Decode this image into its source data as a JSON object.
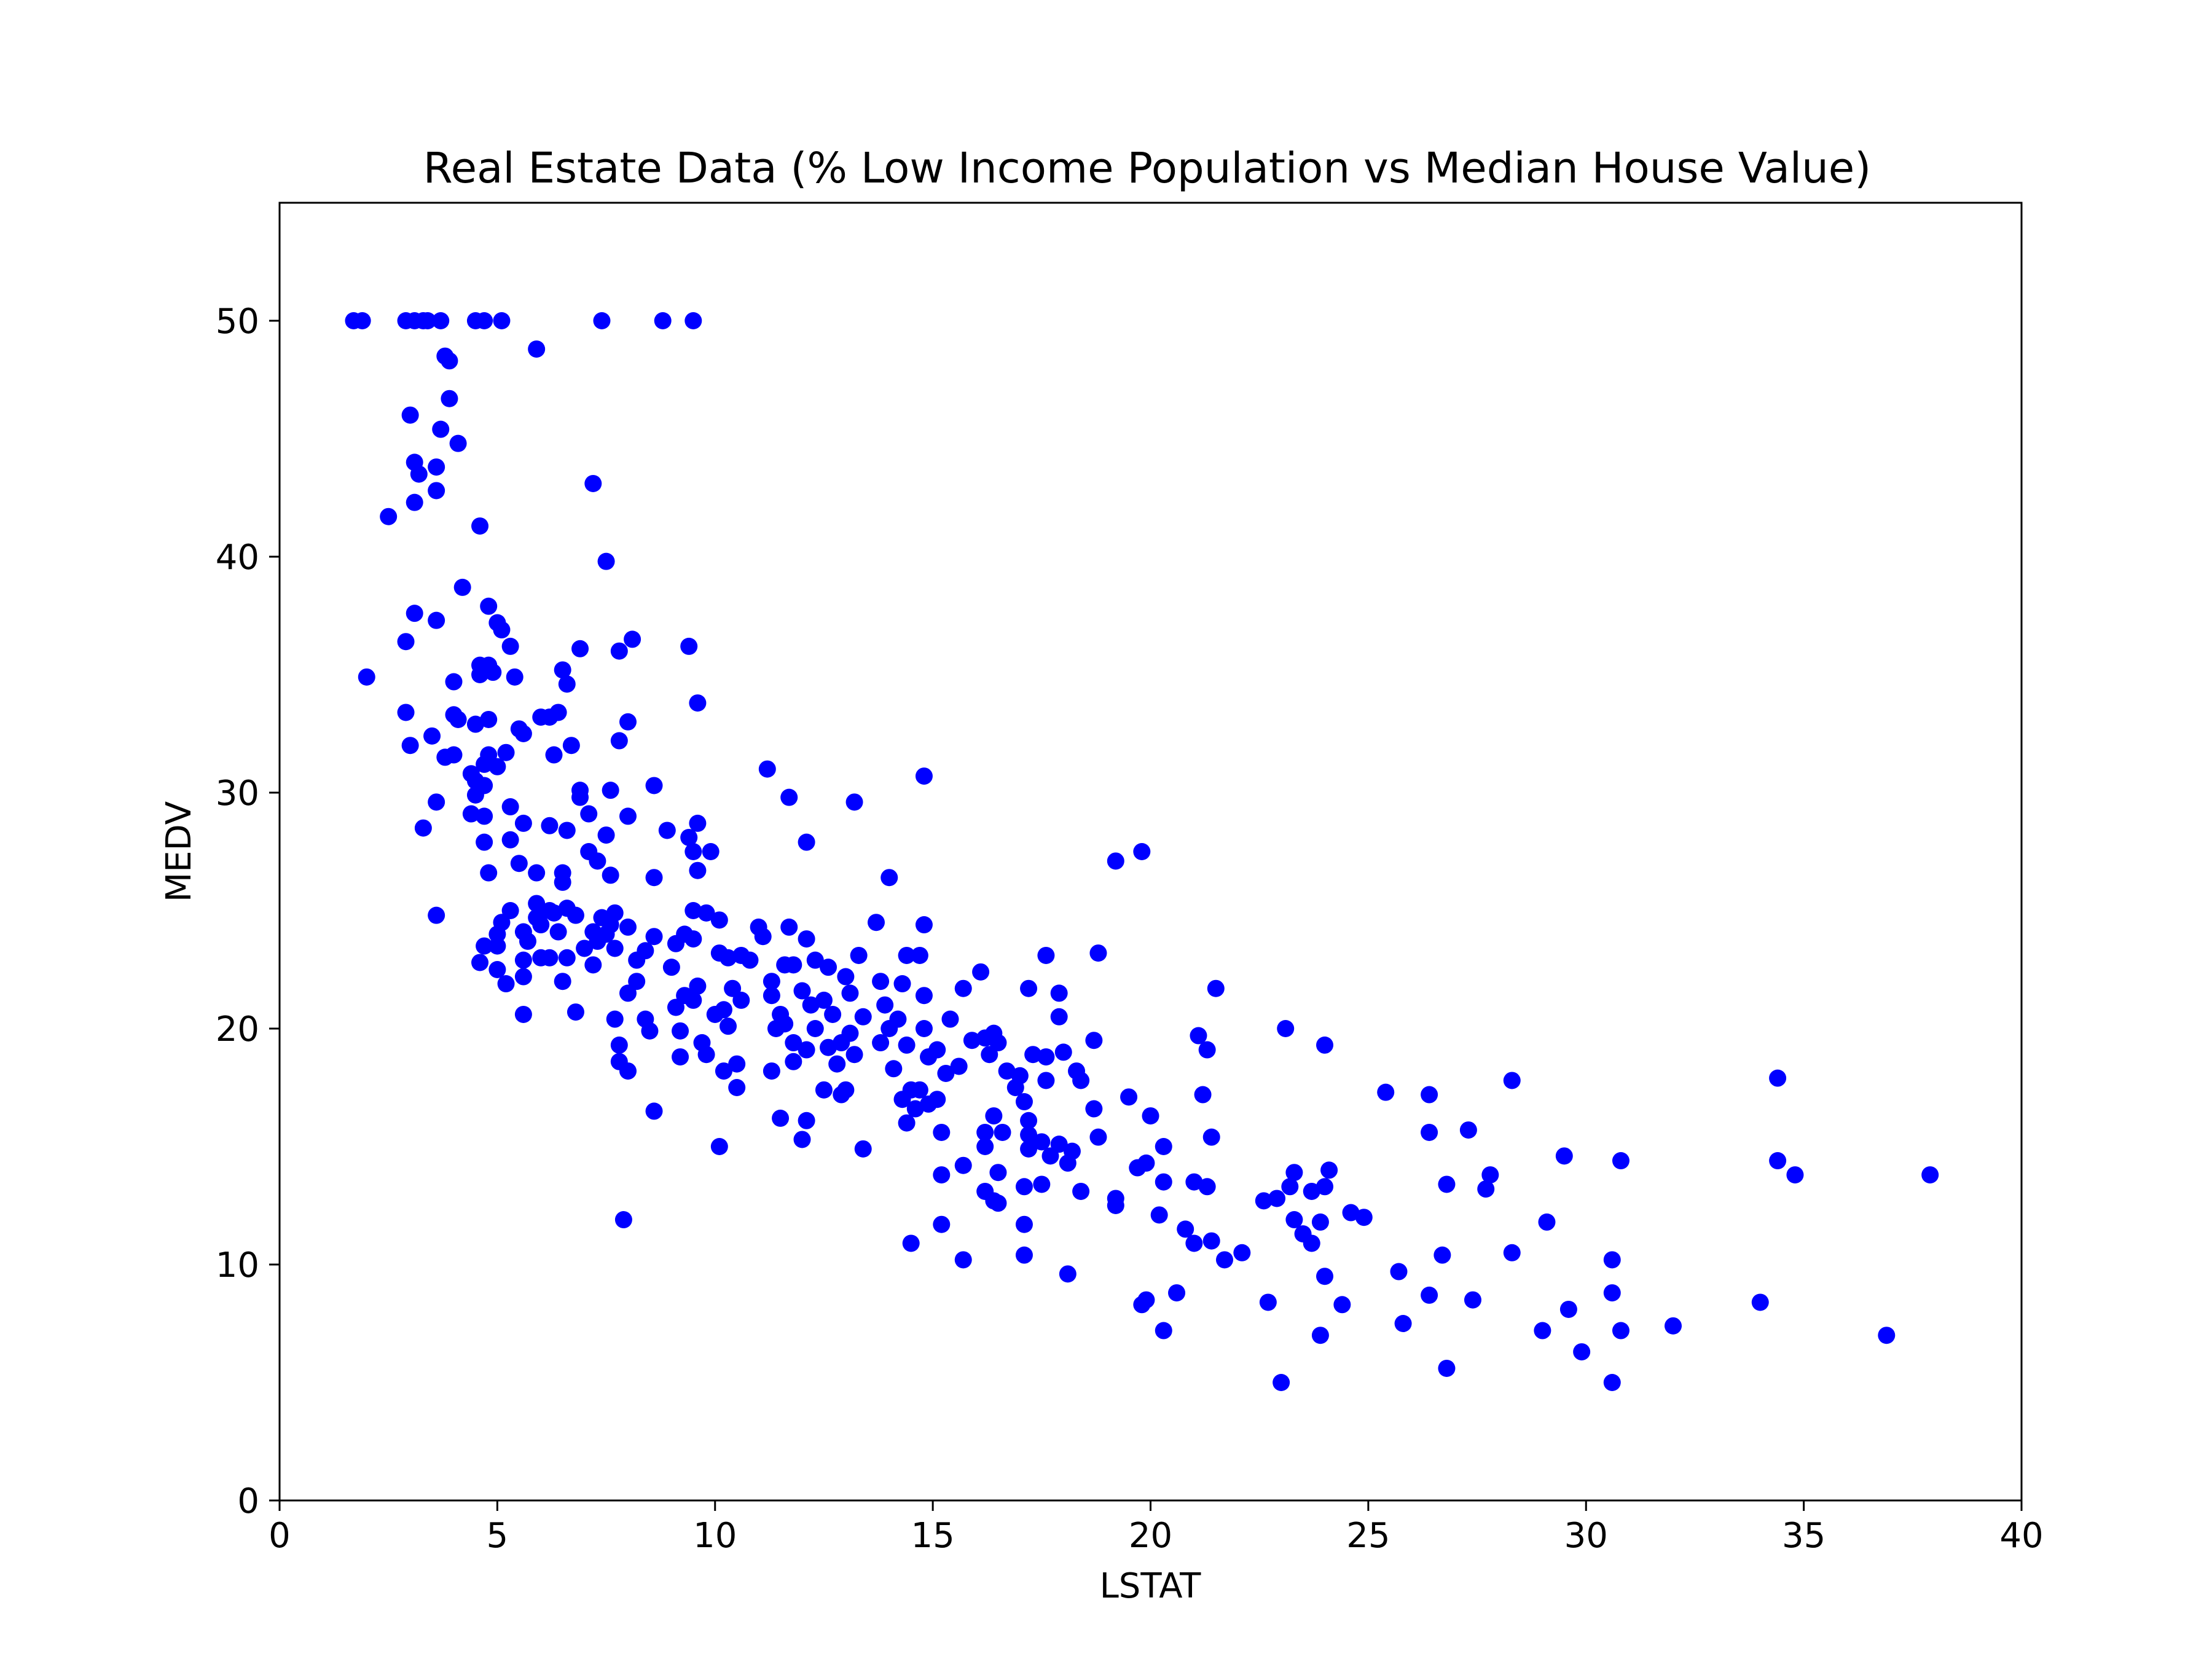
{
  "chart_data": {
    "type": "scatter",
    "title": "Real Estate Data (% Low Income Population vs Median House Value)",
    "xlabel": "LSTAT",
    "ylabel": "MEDV",
    "xlim": [
      0,
      40
    ],
    "ylim": [
      0,
      55
    ],
    "xticks": [
      0,
      5,
      10,
      15,
      20,
      25,
      30,
      35,
      40
    ],
    "yticks": [
      0,
      10,
      20,
      30,
      40,
      50
    ],
    "grid": false,
    "legend": false,
    "color": "#0000ff",
    "points": [
      [
        1.7,
        50.0
      ],
      [
        1.9,
        50.0
      ],
      [
        2.9,
        50.0
      ],
      [
        3.1,
        50.0
      ],
      [
        3.3,
        50.0
      ],
      [
        3.4,
        50.0
      ],
      [
        3.7,
        50.0
      ],
      [
        4.5,
        50.0
      ],
      [
        4.7,
        50.0
      ],
      [
        5.1,
        50.0
      ],
      [
        7.4,
        50.0
      ],
      [
        8.8,
        50.0
      ],
      [
        9.5,
        50.0
      ],
      [
        5.9,
        48.8
      ],
      [
        3.8,
        48.5
      ],
      [
        3.9,
        48.3
      ],
      [
        3.9,
        46.7
      ],
      [
        3.0,
        46.0
      ],
      [
        3.7,
        45.4
      ],
      [
        4.1,
        44.8
      ],
      [
        3.1,
        44.0
      ],
      [
        3.2,
        43.5
      ],
      [
        3.6,
        43.8
      ],
      [
        7.2,
        43.1
      ],
      [
        3.6,
        42.8
      ],
      [
        3.1,
        42.3
      ],
      [
        2.5,
        41.7
      ],
      [
        4.6,
        41.3
      ],
      [
        7.5,
        39.8
      ],
      [
        4.2,
        38.7
      ],
      [
        4.8,
        37.9
      ],
      [
        3.1,
        37.6
      ],
      [
        3.6,
        37.3
      ],
      [
        5.0,
        37.2
      ],
      [
        5.1,
        36.9
      ],
      [
        8.1,
        36.5
      ],
      [
        2.9,
        36.4
      ],
      [
        5.3,
        36.2
      ],
      [
        9.4,
        36.2
      ],
      [
        6.9,
        36.1
      ],
      [
        7.8,
        36.0
      ],
      [
        4.8,
        35.4
      ],
      [
        4.6,
        35.4
      ],
      [
        6.5,
        35.2
      ],
      [
        4.9,
        35.1
      ],
      [
        4.6,
        35.0
      ],
      [
        2.0,
        34.9
      ],
      [
        5.4,
        34.9
      ],
      [
        4.0,
        34.7
      ],
      [
        6.6,
        34.6
      ],
      [
        9.6,
        33.8
      ],
      [
        2.9,
        33.4
      ],
      [
        6.4,
        33.4
      ],
      [
        4.0,
        33.3
      ],
      [
        6.0,
        33.2
      ],
      [
        6.2,
        33.2
      ],
      [
        4.1,
        33.1
      ],
      [
        4.8,
        33.1
      ],
      [
        8.0,
        33.0
      ],
      [
        4.5,
        32.9
      ],
      [
        5.5,
        32.7
      ],
      [
        3.5,
        32.4
      ],
      [
        5.6,
        32.5
      ],
      [
        7.8,
        32.2
      ],
      [
        3.0,
        32.0
      ],
      [
        6.7,
        32.0
      ],
      [
        5.2,
        31.7
      ],
      [
        4.8,
        31.6
      ],
      [
        6.3,
        31.6
      ],
      [
        3.8,
        31.5
      ],
      [
        4.0,
        31.6
      ],
      [
        4.7,
        31.2
      ],
      [
        5.0,
        31.1
      ],
      [
        11.2,
        31.0
      ],
      [
        4.4,
        30.8
      ],
      [
        4.5,
        30.5
      ],
      [
        14.8,
        30.7
      ],
      [
        4.7,
        30.3
      ],
      [
        8.6,
        30.3
      ],
      [
        6.9,
        30.1
      ],
      [
        7.6,
        30.1
      ],
      [
        4.5,
        29.9
      ],
      [
        11.7,
        29.8
      ],
      [
        6.9,
        29.8
      ],
      [
        13.2,
        29.6
      ],
      [
        3.6,
        29.6
      ],
      [
        5.3,
        29.4
      ],
      [
        4.4,
        29.1
      ],
      [
        7.1,
        29.1
      ],
      [
        4.7,
        29.0
      ],
      [
        8.0,
        29.0
      ],
      [
        9.6,
        28.7
      ],
      [
        5.6,
        28.7
      ],
      [
        5.9,
        26.6
      ],
      [
        6.2,
        28.6
      ],
      [
        3.3,
        28.5
      ],
      [
        6.6,
        28.4
      ],
      [
        8.9,
        28.4
      ],
      [
        7.5,
        28.2
      ],
      [
        9.4,
        28.1
      ],
      [
        5.3,
        28.0
      ],
      [
        12.1,
        27.9
      ],
      [
        4.7,
        27.9
      ],
      [
        9.5,
        27.5
      ],
      [
        7.1,
        27.5
      ],
      [
        9.9,
        27.5
      ],
      [
        19.8,
        27.5
      ],
      [
        7.3,
        27.1
      ],
      [
        19.2,
        27.1
      ],
      [
        5.5,
        27.0
      ],
      [
        9.6,
        26.7
      ],
      [
        6.5,
        26.6
      ],
      [
        4.8,
        26.6
      ],
      [
        7.6,
        26.5
      ],
      [
        8.6,
        26.4
      ],
      [
        14.0,
        26.4
      ],
      [
        6.5,
        26.2
      ],
      [
        5.9,
        25.3
      ],
      [
        6.2,
        25.0
      ],
      [
        6.6,
        25.1
      ],
      [
        5.3,
        25.0
      ],
      [
        6.3,
        24.9
      ],
      [
        7.7,
        24.9
      ],
      [
        9.5,
        25.0
      ],
      [
        9.8,
        24.9
      ],
      [
        6.8,
        24.8
      ],
      [
        3.6,
        24.8
      ],
      [
        5.9,
        24.7
      ],
      [
        7.4,
        24.7
      ],
      [
        10.1,
        24.6
      ],
      [
        5.1,
        24.5
      ],
      [
        6.0,
        24.4
      ],
      [
        7.6,
        24.4
      ],
      [
        13.7,
        24.5
      ],
      [
        14.8,
        24.4
      ],
      [
        8.0,
        24.3
      ],
      [
        11.0,
        24.3
      ],
      [
        11.7,
        24.3
      ],
      [
        7.2,
        24.1
      ],
      [
        5.6,
        24.1
      ],
      [
        6.4,
        24.1
      ],
      [
        9.3,
        24.0
      ],
      [
        5.0,
        24.0
      ],
      [
        7.5,
        24.0
      ],
      [
        11.1,
        23.9
      ],
      [
        8.6,
        23.9
      ],
      [
        12.1,
        23.8
      ],
      [
        9.5,
        23.8
      ],
      [
        5.7,
        23.7
      ],
      [
        7.3,
        23.7
      ],
      [
        9.1,
        23.6
      ],
      [
        5.0,
        23.5
      ],
      [
        4.7,
        23.5
      ],
      [
        7.0,
        23.4
      ],
      [
        7.7,
        23.4
      ],
      [
        8.4,
        23.3
      ],
      [
        10.6,
        23.1
      ],
      [
        13.3,
        23.1
      ],
      [
        10.1,
        23.2
      ],
      [
        6.0,
        23.0
      ],
      [
        17.6,
        23.1
      ],
      [
        5.6,
        22.9
      ],
      [
        6.6,
        23.0
      ],
      [
        8.2,
        22.9
      ],
      [
        10.3,
        23.0
      ],
      [
        10.8,
        22.9
      ],
      [
        14.4,
        23.1
      ],
      [
        14.7,
        23.1
      ],
      [
        6.2,
        23.0
      ],
      [
        18.8,
        23.2
      ],
      [
        4.6,
        22.8
      ],
      [
        7.2,
        22.7
      ],
      [
        9.0,
        22.6
      ],
      [
        11.6,
        22.7
      ],
      [
        11.8,
        22.7
      ],
      [
        12.3,
        22.9
      ],
      [
        12.6,
        22.6
      ],
      [
        5.0,
        22.5
      ],
      [
        16.1,
        22.4
      ],
      [
        13.0,
        22.2
      ],
      [
        5.6,
        22.2
      ],
      [
        6.5,
        22.0
      ],
      [
        5.2,
        21.9
      ],
      [
        8.2,
        22.0
      ],
      [
        11.3,
        22.0
      ],
      [
        13.8,
        22.0
      ],
      [
        14.3,
        21.9
      ],
      [
        9.6,
        21.8
      ],
      [
        10.4,
        21.7
      ],
      [
        15.7,
        21.7
      ],
      [
        17.2,
        21.7
      ],
      [
        21.5,
        21.7
      ],
      [
        12.0,
        21.6
      ],
      [
        8.0,
        21.5
      ],
      [
        13.1,
        21.5
      ],
      [
        17.9,
        21.5
      ],
      [
        9.3,
        21.4
      ],
      [
        11.3,
        21.4
      ],
      [
        14.8,
        21.4
      ],
      [
        10.6,
        21.2
      ],
      [
        12.5,
        21.2
      ],
      [
        9.5,
        21.2
      ],
      [
        12.2,
        21.0
      ],
      [
        13.9,
        21.0
      ],
      [
        9.1,
        20.9
      ],
      [
        10.2,
        20.8
      ],
      [
        12.7,
        20.6
      ],
      [
        6.8,
        20.7
      ],
      [
        5.6,
        20.6
      ],
      [
        10.0,
        20.6
      ],
      [
        11.5,
        20.6
      ],
      [
        13.4,
        20.5
      ],
      [
        14.2,
        20.4
      ],
      [
        7.7,
        20.4
      ],
      [
        8.4,
        20.4
      ],
      [
        15.4,
        20.4
      ],
      [
        17.9,
        20.5
      ],
      [
        11.6,
        20.2
      ],
      [
        10.3,
        20.1
      ],
      [
        12.3,
        20.0
      ],
      [
        8.5,
        19.9
      ],
      [
        9.2,
        19.9
      ],
      [
        11.4,
        20.0
      ],
      [
        14.0,
        20.0
      ],
      [
        14.8,
        20.0
      ],
      [
        16.4,
        19.8
      ],
      [
        13.1,
        19.8
      ],
      [
        16.2,
        19.6
      ],
      [
        11.8,
        19.4
      ],
      [
        15.9,
        19.5
      ],
      [
        9.7,
        19.4
      ],
      [
        12.9,
        19.4
      ],
      [
        13.8,
        19.4
      ],
      [
        16.5,
        19.4
      ],
      [
        18.7,
        19.5
      ],
      [
        21.1,
        19.7
      ],
      [
        24.0,
        19.3
      ],
      [
        23.1,
        20.0
      ],
      [
        7.8,
        19.3
      ],
      [
        12.6,
        19.2
      ],
      [
        14.4,
        19.3
      ],
      [
        12.1,
        19.1
      ],
      [
        15.1,
        19.1
      ],
      [
        17.6,
        18.8
      ],
      [
        18.0,
        19.0
      ],
      [
        21.3,
        19.1
      ],
      [
        9.8,
        18.9
      ],
      [
        13.2,
        18.9
      ],
      [
        14.9,
        18.8
      ],
      [
        9.2,
        18.8
      ],
      [
        15.6,
        18.4
      ],
      [
        16.3,
        18.9
      ],
      [
        17.3,
        18.9
      ],
      [
        11.8,
        18.6
      ],
      [
        7.8,
        18.6
      ],
      [
        10.5,
        18.5
      ],
      [
        12.8,
        18.5
      ],
      [
        15.3,
        18.1
      ],
      [
        16.7,
        18.2
      ],
      [
        18.3,
        18.2
      ],
      [
        10.2,
        18.2
      ],
      [
        11.3,
        18.2
      ],
      [
        14.1,
        18.3
      ],
      [
        8.0,
        18.2
      ],
      [
        17.0,
        18.0
      ],
      [
        17.6,
        17.8
      ],
      [
        18.4,
        17.8
      ],
      [
        28.3,
        17.8
      ],
      [
        34.4,
        17.9
      ],
      [
        10.5,
        17.5
      ],
      [
        12.5,
        17.4
      ],
      [
        13.0,
        17.4
      ],
      [
        14.5,
        17.4
      ],
      [
        14.7,
        17.4
      ],
      [
        15.1,
        17.0
      ],
      [
        16.9,
        17.5
      ],
      [
        21.2,
        17.2
      ],
      [
        26.4,
        17.2
      ],
      [
        25.4,
        17.3
      ],
      [
        19.5,
        17.1
      ],
      [
        14.3,
        17.0
      ],
      [
        12.9,
        17.2
      ],
      [
        14.9,
        16.8
      ],
      [
        17.1,
        16.9
      ],
      [
        14.6,
        16.6
      ],
      [
        8.6,
        16.5
      ],
      [
        16.4,
        16.3
      ],
      [
        18.7,
        16.6
      ],
      [
        20.0,
        16.3
      ],
      [
        11.5,
        16.2
      ],
      [
        12.1,
        16.1
      ],
      [
        17.2,
        16.1
      ],
      [
        14.4,
        16.0
      ],
      [
        15.2,
        15.6
      ],
      [
        16.6,
        15.6
      ],
      [
        17.2,
        15.5
      ],
      [
        16.2,
        15.6
      ],
      [
        26.4,
        15.6
      ],
      [
        27.3,
        15.7
      ],
      [
        17.5,
        15.2
      ],
      [
        17.9,
        15.1
      ],
      [
        18.8,
        15.4
      ],
      [
        21.4,
        15.4
      ],
      [
        12.0,
        15.3
      ],
      [
        16.2,
        15.0
      ],
      [
        17.2,
        14.9
      ],
      [
        18.2,
        14.8
      ],
      [
        20.3,
        15.0
      ],
      [
        10.1,
        15.0
      ],
      [
        13.4,
        14.9
      ],
      [
        17.7,
        14.6
      ],
      [
        18.1,
        14.3
      ],
      [
        19.9,
        14.3
      ],
      [
        29.5,
        14.6
      ],
      [
        15.7,
        14.2
      ],
      [
        19.7,
        14.1
      ],
      [
        34.4,
        14.4
      ],
      [
        30.8,
        14.4
      ],
      [
        16.5,
        13.9
      ],
      [
        15.2,
        13.8
      ],
      [
        23.3,
        13.9
      ],
      [
        24.1,
        14.0
      ],
      [
        27.8,
        13.8
      ],
      [
        37.9,
        13.8
      ],
      [
        34.8,
        13.8
      ],
      [
        20.3,
        13.5
      ],
      [
        21.0,
        13.5
      ],
      [
        23.2,
        13.3
      ],
      [
        24.0,
        13.3
      ],
      [
        26.8,
        13.4
      ],
      [
        27.7,
        13.2
      ],
      [
        17.1,
        13.3
      ],
      [
        17.5,
        13.4
      ],
      [
        16.2,
        13.1
      ],
      [
        18.4,
        13.1
      ],
      [
        21.3,
        13.3
      ],
      [
        23.7,
        13.1
      ],
      [
        19.2,
        12.8
      ],
      [
        22.6,
        12.7
      ],
      [
        22.9,
        12.8
      ],
      [
        16.4,
        12.7
      ],
      [
        16.5,
        12.6
      ],
      [
        19.2,
        12.5
      ],
      [
        24.6,
        12.2
      ],
      [
        24.9,
        12.0
      ],
      [
        20.2,
        12.1
      ],
      [
        7.9,
        11.9
      ],
      [
        23.3,
        11.9
      ],
      [
        23.9,
        11.8
      ],
      [
        29.1,
        11.8
      ],
      [
        15.2,
        11.7
      ],
      [
        17.1,
        11.7
      ],
      [
        20.8,
        11.5
      ],
      [
        21.4,
        11.0
      ],
      [
        23.5,
        11.3
      ],
      [
        23.7,
        10.9
      ],
      [
        21.0,
        10.9
      ],
      [
        14.5,
        10.9
      ],
      [
        28.3,
        10.5
      ],
      [
        26.7,
        10.4
      ],
      [
        22.1,
        10.5
      ],
      [
        17.1,
        10.4
      ],
      [
        21.7,
        10.2
      ],
      [
        15.7,
        10.2
      ],
      [
        30.6,
        10.2
      ],
      [
        25.7,
        9.7
      ],
      [
        24.0,
        9.5
      ],
      [
        18.1,
        9.6
      ],
      [
        20.6,
        8.8
      ],
      [
        30.6,
        8.8
      ],
      [
        26.4,
        8.7
      ],
      [
        27.4,
        8.5
      ],
      [
        22.7,
        8.4
      ],
      [
        19.8,
        8.3
      ],
      [
        34.0,
        8.4
      ],
      [
        19.9,
        8.5
      ],
      [
        24.4,
        8.3
      ],
      [
        29.6,
        8.1
      ],
      [
        25.8,
        7.5
      ],
      [
        32.0,
        7.4
      ],
      [
        29.0,
        7.2
      ],
      [
        20.3,
        7.2
      ],
      [
        30.8,
        7.2
      ],
      [
        23.9,
        7.0
      ],
      [
        36.9,
        7.0
      ],
      [
        29.9,
        6.3
      ],
      [
        26.8,
        5.6
      ],
      [
        23.0,
        5.0
      ],
      [
        30.6,
        5.0
      ]
    ]
  }
}
